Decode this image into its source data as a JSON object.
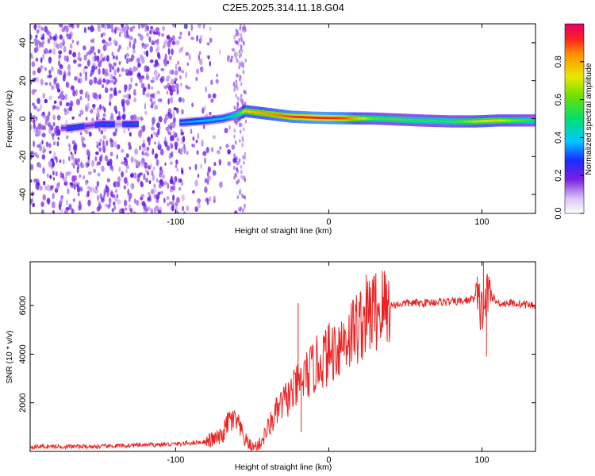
{
  "chart_data": [
    {
      "type": "heatmap",
      "title": "C2E5.2025.314.11.18.G04",
      "xlabel": "Height of straight line (km)",
      "ylabel": "Frequency (Hz)",
      "xlim": [
        -195,
        135
      ],
      "ylim": [
        -50,
        50
      ],
      "xticks": [
        -100,
        0,
        100
      ],
      "xtick_labels": [
        "-100",
        "0",
        "100"
      ],
      "yticks": [
        -40,
        -20,
        0,
        20,
        40
      ],
      "ytick_labels": [
        "-40",
        "-20",
        "0",
        "20",
        "40"
      ],
      "ridge": {
        "description": "Frequency of the spectral peak along height",
        "x": [
          -170,
          -150,
          -130,
          -95,
          -80,
          -70,
          -60,
          -55,
          -45,
          -35,
          -25,
          -10,
          0,
          10,
          30,
          60,
          80,
          95,
          110,
          135
        ],
        "freq": [
          -5,
          -3,
          -3,
          -2,
          -1,
          0,
          2,
          4,
          3,
          2,
          1,
          0.5,
          0.3,
          0.2,
          0,
          -1,
          -1.5,
          -1.5,
          -1,
          -1
        ],
        "amplitude": [
          0.3,
          0.3,
          0.3,
          0.35,
          0.4,
          0.4,
          0.5,
          0.75,
          0.8,
          0.85,
          0.9,
          0.95,
          0.95,
          0.9,
          0.6,
          0.55,
          0.55,
          0.7,
          0.75,
          0.5
        ]
      },
      "colorbar": {
        "label": "Normalized spectral amplitude",
        "range": [
          0,
          1
        ],
        "ticks": [
          0.0,
          0.2,
          0.4,
          0.6,
          0.8
        ],
        "tick_labels": [
          "0.0",
          "0.2",
          "0.4",
          "0.6",
          "0.8"
        ]
      }
    },
    {
      "type": "line",
      "title": "",
      "xlabel": "Height of straight line (km)",
      "ylabel": "SNR (10 * v/v)",
      "xlim": [
        -195,
        135
      ],
      "ylim": [
        0,
        7800
      ],
      "xticks": [
        -100,
        0,
        100
      ],
      "xtick_labels": [
        "-100",
        "0",
        "100"
      ],
      "yticks": [
        2000,
        4000,
        6000
      ],
      "ytick_labels": [
        "2000",
        "4000",
        "6000"
      ],
      "color": "#ee2222",
      "series": [
        {
          "name": "SNR",
          "x": [
            -195,
            -150,
            -100,
            -80,
            -70,
            -65,
            -60,
            -55,
            -50,
            -45,
            -40,
            -35,
            -30,
            -25,
            -20,
            -15,
            -10,
            -5,
            0,
            5,
            10,
            15,
            20,
            25,
            30,
            40,
            50,
            60,
            70,
            80,
            90,
            95,
            100,
            105,
            110,
            120,
            135
          ],
          "y": [
            200,
            200,
            300,
            400,
            600,
            1300,
            1200,
            500,
            150,
            300,
            900,
            1500,
            2000,
            2300,
            2700,
            3100,
            3400,
            3800,
            4000,
            4300,
            4600,
            4900,
            5200,
            5600,
            5800,
            6000,
            6100,
            6100,
            6150,
            6150,
            6200,
            6300,
            5800,
            6500,
            6100,
            6100,
            6000
          ]
        }
      ]
    }
  ]
}
